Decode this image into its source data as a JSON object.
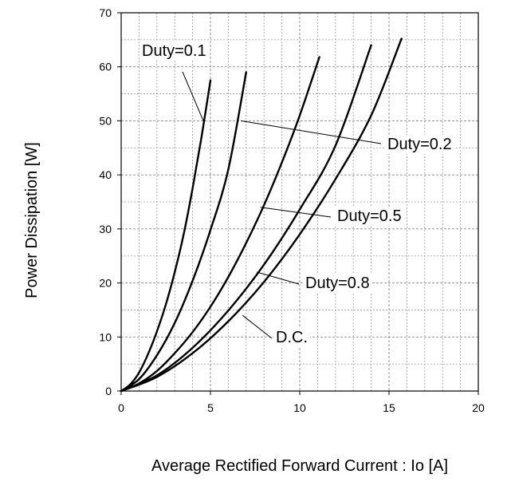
{
  "chart_data": {
    "type": "line",
    "xlabel": "Average Rectified Forward Current : Io [A]",
    "ylabel": "Power Dissipation [W]",
    "xlim": [
      0,
      20
    ],
    "ylim": [
      0,
      70
    ],
    "x_ticks": [
      0,
      5,
      10,
      15,
      20
    ],
    "y_ticks": [
      0,
      10,
      20,
      30,
      40,
      50,
      60,
      70
    ],
    "x_tick_labels": [
      "0",
      "5",
      "10",
      "15",
      "20"
    ],
    "y_tick_labels": [
      "0",
      "10",
      "20",
      "30",
      "40",
      "50",
      "60",
      "70"
    ],
    "grid": true,
    "series": [
      {
        "name": "Duty=0.1",
        "x": [
          0,
          0.5,
          1,
          1.5,
          2,
          2.5,
          3,
          3.5,
          4,
          4.5,
          5
        ],
        "y": [
          0,
          1.2,
          3.4,
          6.8,
          11.0,
          16.0,
          22.0,
          29.0,
          37.5,
          47.0,
          57.5
        ]
      },
      {
        "name": "Duty=0.2",
        "x": [
          0,
          1,
          2,
          3,
          4,
          5,
          6,
          7
        ],
        "y": [
          0,
          2.2,
          6.6,
          12.6,
          20.4,
          29.8,
          41.0,
          59.0
        ]
      },
      {
        "name": "Duty=0.5",
        "x": [
          0,
          1,
          2,
          3,
          4,
          5,
          6,
          7,
          8,
          9,
          10,
          11.1
        ],
        "y": [
          0,
          1.4,
          3.7,
          7.0,
          10.9,
          15.6,
          21.1,
          27.4,
          34.4,
          42.3,
          51.0,
          61.8
        ]
      },
      {
        "name": "Duty=0.8",
        "x": [
          0,
          2,
          4,
          6,
          8,
          10,
          12,
          14
        ],
        "y": [
          0,
          2.9,
          8.0,
          14.9,
          23.4,
          33.6,
          45.4,
          64.0
        ]
      },
      {
        "name": "D.C.",
        "x": [
          0,
          2,
          4,
          6,
          8,
          10,
          12,
          14,
          15.7
        ],
        "y": [
          0,
          2.6,
          7.0,
          12.9,
          20.2,
          29.0,
          39.2,
          51.0,
          65.2
        ]
      }
    ],
    "annotations": [
      {
        "text": "Duty=0.1",
        "series": "Duty=0.1",
        "point": [
          4.6,
          50
        ]
      },
      {
        "text": "Duty=0.2",
        "series": "Duty=0.2",
        "point": [
          6.7,
          50
        ]
      },
      {
        "text": "Duty=0.5",
        "series": "Duty=0.5",
        "point": [
          7.8,
          34
        ]
      },
      {
        "text": "Duty=0.8",
        "series": "Duty=0.8",
        "point": [
          7.6,
          22
        ]
      },
      {
        "text": "D.C.",
        "series": "D.C.",
        "point": [
          6.8,
          14
        ]
      }
    ]
  }
}
